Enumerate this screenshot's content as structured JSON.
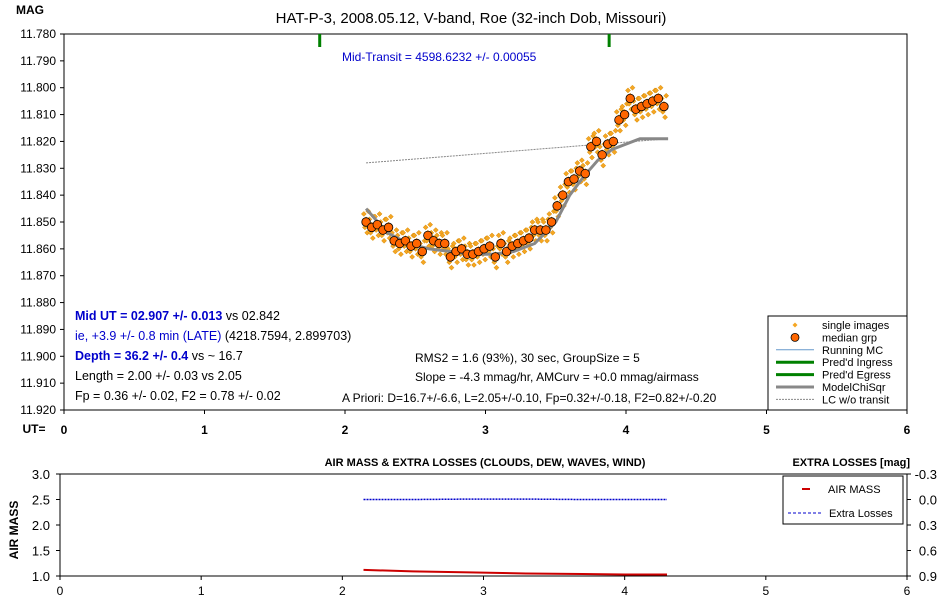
{
  "chart_data": [
    {
      "type": "scatter",
      "title": "HAT-P-3, 2008.05.12, V-band, Roe (32-inch Dob, Missouri)",
      "ylabel": "MAG",
      "xlabel": "UT=",
      "xlim": [
        0,
        6
      ],
      "ylim": [
        11.92,
        11.78
      ],
      "x_ticks": [
        "0",
        "1",
        "2",
        "3",
        "4",
        "5",
        "6"
      ],
      "y_ticks": [
        "11.780",
        "11.790",
        "11.800",
        "11.810",
        "11.820",
        "11.830",
        "11.840",
        "11.850",
        "11.860",
        "11.870",
        "11.880",
        "11.890",
        "11.900",
        "11.910",
        "11.920"
      ],
      "pred_ingress_ut": 1.82,
      "pred_egress_ut": 3.88,
      "annotations": {
        "mid_transit": "Mid-Transit = 4598.6232 +/- 0.00055",
        "mid_ut": "Mid UT = 02.907 +/- 0.013",
        "mid_ut_vs": " vs 02.842",
        "ie_late": "ie, +3.9 +/- 0.8 min (LATE)",
        "ie_rest": " (4218.7594, 2.899703)",
        "depth": "Depth = 36.2 +/- 0.4",
        "depth_vs": " vs ~ 16.7",
        "length": "Length = 2.00 +/- 0.03 vs 2.05",
        "fp": "Fp = 0.36 +/- 0.02, F2 = 0.78 +/- 0.02",
        "rms": "RMS2 = 1.6 (93%), 30 sec, GroupSize = 5",
        "slope": "Slope = -4.3 mmag/hr, AMCurv = +0.0 mmag/airmass",
        "apriori": "A Priori: D=16.7+/-6.6, L=2.05+/-0.10, Fp=0.32+/-0.18, F2=0.82+/-0.20"
      },
      "legend": {
        "placement": "bottom-right",
        "entries": [
          "single images",
          "median grp",
          "Running MC",
          "Pred'd Ingress",
          "Pred'd Egress",
          "ModelChiSqr",
          "LC w/o transit"
        ]
      },
      "colors": {
        "single_images": "#f5a623",
        "median_grp": "#ff6600",
        "running_mc": "#6699cc",
        "pred_lines": "#008000",
        "model": "#888888",
        "lc_wo_transit": "#888888",
        "mid_transit_text": "#0000cc",
        "blue_text": "#0000cc"
      },
      "series": [
        {
          "name": "median grp",
          "x": [
            2.15,
            2.19,
            2.23,
            2.27,
            2.31,
            2.35,
            2.39,
            2.43,
            2.47,
            2.51,
            2.55,
            2.59,
            2.63,
            2.67,
            2.71,
            2.75,
            2.79,
            2.83,
            2.87,
            2.91,
            2.95,
            2.99,
            3.03,
            3.07,
            3.11,
            3.15,
            3.19,
            3.23,
            3.27,
            3.31,
            3.35,
            3.39,
            3.43,
            3.47,
            3.51,
            3.55,
            3.59,
            3.63,
            3.67,
            3.71,
            3.75,
            3.79,
            3.83,
            3.87,
            3.91,
            3.95,
            3.99,
            4.03,
            4.07,
            4.11,
            4.15,
            4.19,
            4.23,
            4.27
          ],
          "values": [
            11.85,
            11.852,
            11.851,
            11.853,
            11.852,
            11.857,
            11.858,
            11.857,
            11.859,
            11.858,
            11.861,
            11.855,
            11.857,
            11.858,
            11.858,
            11.863,
            11.861,
            11.86,
            11.862,
            11.862,
            11.861,
            11.86,
            11.859,
            11.863,
            11.858,
            11.861,
            11.859,
            11.858,
            11.857,
            11.856,
            11.853,
            11.853,
            11.853,
            11.85,
            11.844,
            11.84,
            11.835,
            11.834,
            11.831,
            11.832,
            11.822,
            11.82,
            11.825,
            11.821,
            11.82,
            11.812,
            11.81,
            11.804,
            11.808,
            11.807,
            11.806,
            11.805,
            11.804,
            11.807
          ]
        },
        {
          "name": "ModelChiSqr",
          "x": [
            2.15,
            2.3,
            2.45,
            2.6,
            2.75,
            2.9,
            3.05,
            3.2,
            3.35,
            3.5,
            3.6,
            3.7,
            3.8,
            3.9,
            4.0,
            4.1,
            4.2,
            4.3
          ],
          "values": [
            11.845,
            11.854,
            11.858,
            11.86,
            11.861,
            11.862,
            11.862,
            11.861,
            11.858,
            11.85,
            11.84,
            11.833,
            11.827,
            11.823,
            11.821,
            11.819,
            11.819,
            11.819
          ]
        },
        {
          "name": "LC w/o transit",
          "x": [
            2.15,
            4.3
          ],
          "values": [
            11.828,
            11.819
          ]
        }
      ]
    },
    {
      "type": "line",
      "title": "AIR MASS & EXTRA LOSSES (CLOUDS, DEW, WAVES, WIND)",
      "ylabel": "AIR MASS",
      "y2label": "EXTRA LOSSES [mag]",
      "xlim": [
        0,
        6
      ],
      "ylim": [
        1.0,
        3.0
      ],
      "y2lim": [
        -0.3,
        0.9
      ],
      "x_ticks": [
        "0",
        "1",
        "2",
        "3",
        "4",
        "5",
        "6"
      ],
      "y_ticks": [
        "1.0",
        "1.5",
        "2.0",
        "2.5",
        "3.0"
      ],
      "y2_ticks": [
        "-0.3",
        "0.0",
        "0.3",
        "0.6",
        "0.9"
      ],
      "legend": {
        "placement": "top-right",
        "entries": [
          "AIR MASS",
          "Extra Losses"
        ]
      },
      "colors": {
        "air_mass": "#cc0000",
        "extra_losses": "#0000cc"
      },
      "series": [
        {
          "name": "AIR MASS",
          "x": [
            2.15,
            2.5,
            2.9,
            3.3,
            3.7,
            4.0,
            4.3
          ],
          "values": [
            1.12,
            1.09,
            1.07,
            1.05,
            1.04,
            1.03,
            1.03
          ]
        },
        {
          "name": "Extra Losses",
          "x": [
            2.15,
            2.5,
            2.9,
            3.3,
            3.7,
            4.0,
            4.3
          ],
          "values": [
            0.0,
            0.0,
            -0.005,
            -0.005,
            0.0,
            0.0,
            0.0
          ]
        }
      ]
    }
  ]
}
